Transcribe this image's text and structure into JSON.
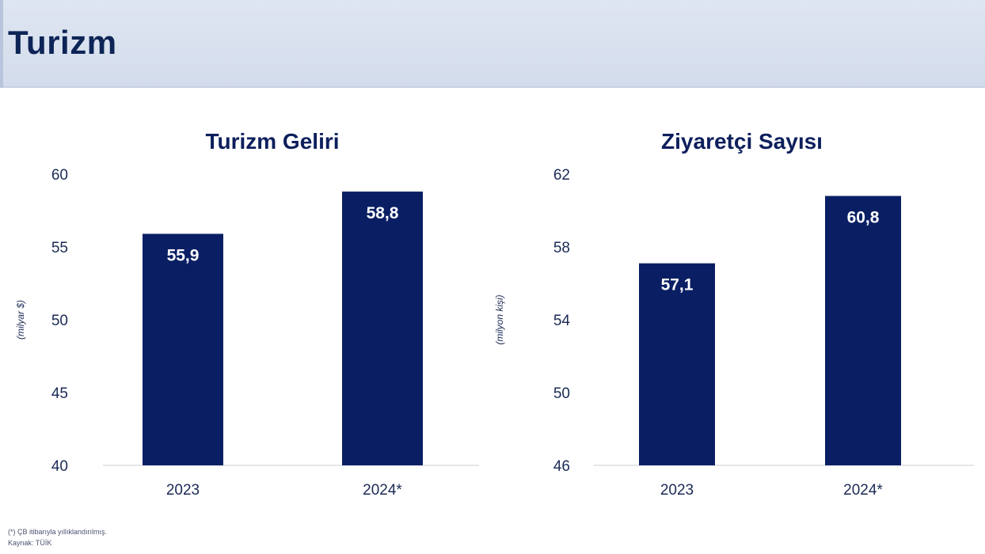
{
  "page": {
    "title": "Turizm"
  },
  "footnote": {
    "line1": "(*) ÇB itibarıyla yıllıklandırılmış.",
    "line2": "Kaynak: TÜİK"
  },
  "colors": {
    "bar": "#0a1f63",
    "axis_text": "#1b2a55",
    "header_bg": "#d9e1ee"
  },
  "chart_data": [
    {
      "type": "bar",
      "title": "Turizm Geliri",
      "ylabel": "(milyar $)",
      "categories": [
        "2023",
        "2024*"
      ],
      "values": [
        55.9,
        58.8
      ],
      "value_labels": [
        "55,9",
        "58,8"
      ],
      "ylim": [
        40,
        60
      ],
      "yticks": [
        "40",
        "45",
        "50",
        "55",
        "60"
      ],
      "grid": false,
      "legend": "none"
    },
    {
      "type": "bar",
      "title": "Ziyaretçi Sayısı",
      "ylabel": "(milyon kişi)",
      "categories": [
        "2023",
        "2024*"
      ],
      "values": [
        57.1,
        60.8
      ],
      "value_labels": [
        "57,1",
        "60,8"
      ],
      "ylim": [
        46,
        62
      ],
      "yticks": [
        "46",
        "50",
        "54",
        "58",
        "62"
      ],
      "grid": false,
      "legend": "none"
    }
  ]
}
